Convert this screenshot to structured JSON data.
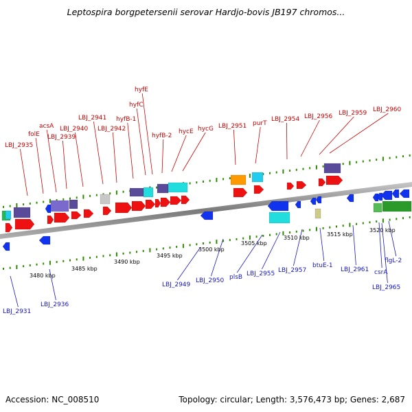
{
  "title": "Leptospira borgpetersenii serovar Hardjo-bovis JB197 chromos...",
  "footer": {
    "accession": "Accession: NC_008510",
    "summary": "Topology: circular; Length: 3,576,473 bp; Genes: 2,687"
  },
  "colors": {
    "forward_label": "#cc0000",
    "reverse_label": "#1414c8",
    "tick": "#2e8b00",
    "backbone": "#808080"
  },
  "scale_labels": [
    "3480 kbp",
    "3485 kbp",
    "3490 kbp",
    "3495 kbp",
    "3500 kbp",
    "3505 kbp",
    "3510 kbp",
    "3515 kbp",
    "3520 kbp"
  ],
  "top_labels": [
    "LBJ_2935",
    "folE",
    "acsA",
    "LBJ_2939",
    "LBJ_2940",
    "LBJ_2941",
    "LBJ_2942",
    "hyfB-1",
    "hyfC",
    "hyfE",
    "hyfB-2",
    "hycE",
    "hycG",
    "LBJ_2951",
    "purT",
    "LBJ_2954",
    "LBJ_2956",
    "LBJ_2959",
    "LBJ_2960"
  ],
  "bottom_labels": [
    "LBJ_2931",
    "LBJ_2936",
    "LBJ_2949",
    "LBJ_2950",
    "plsB",
    "LBJ_2955",
    "LBJ_2957",
    "btuE-1",
    "LBJ_2961",
    "csrA",
    "LBJ_2965",
    "flgL-2"
  ]
}
